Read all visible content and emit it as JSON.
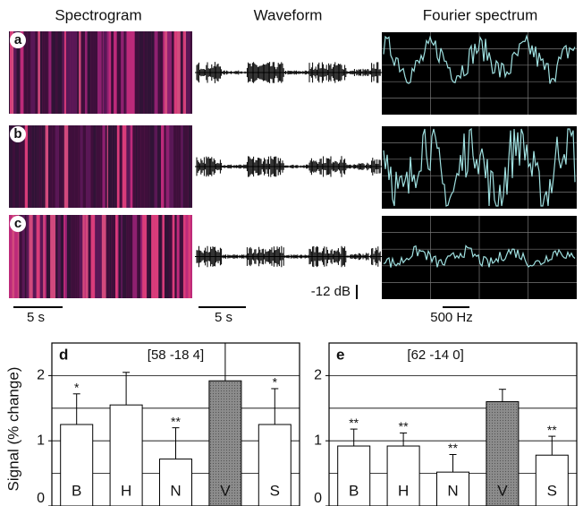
{
  "figure": {
    "column_titles": [
      "Spectrogram",
      "Waveform",
      "Fourier spectrum"
    ],
    "panel_labels": [
      "a",
      "b",
      "c"
    ],
    "scale_bars": [
      "5 s",
      "5 s",
      "-12 dB",
      "500 Hz"
    ]
  },
  "chart_data": [
    {
      "type": "bar",
      "panel": "d",
      "title": "[58 -18 4]",
      "ylabel": "Signal (% change)",
      "categories": [
        "B",
        "H",
        "N",
        "V",
        "S"
      ],
      "values": [
        1.25,
        1.55,
        0.72,
        1.92,
        1.25
      ],
      "errors": [
        0.47,
        0.5,
        0.48,
        0.6,
        0.55
      ],
      "significance": [
        "*",
        null,
        "**",
        null,
        "*"
      ],
      "colors": [
        "#ffffff",
        "#ffffff",
        "#ffffff",
        "#8c8c8c",
        "#ffffff"
      ],
      "ylim": [
        0,
        2.5
      ],
      "yticks": [
        0,
        1,
        2
      ],
      "grid_lines": [
        0.5,
        1,
        1.5,
        2
      ]
    },
    {
      "type": "bar",
      "panel": "e",
      "title": "[62 -14 0]",
      "categories": [
        "B",
        "H",
        "N",
        "V",
        "S"
      ],
      "values": [
        0.92,
        0.92,
        0.52,
        1.6,
        0.78
      ],
      "errors": [
        0.26,
        0.2,
        0.27,
        0.19,
        0.29
      ],
      "significance": [
        "**",
        "**",
        "**",
        null,
        "**"
      ],
      "colors": [
        "#ffffff",
        "#ffffff",
        "#ffffff",
        "#8c8c8c",
        "#ffffff"
      ],
      "ylim": [
        0,
        2.5
      ],
      "yticks": [
        0,
        1,
        2
      ],
      "grid_lines": [
        0.5,
        1,
        1.5,
        2
      ]
    }
  ]
}
